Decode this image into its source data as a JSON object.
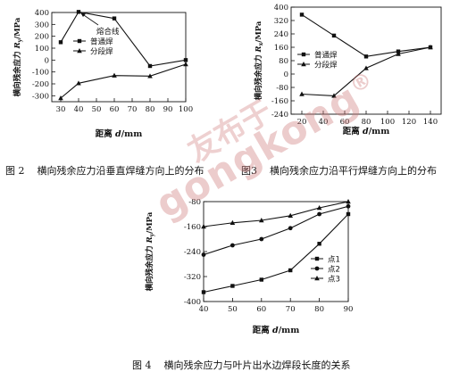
{
  "chart_data": [
    {
      "type": "line",
      "id": "fig2",
      "title": "",
      "xlabel": "距离 d/mm",
      "ylabel": "横向残余应力 R_y/MPa",
      "xlim": [
        25,
        100
      ],
      "ylim": [
        -350,
        400
      ],
      "xticks": [
        30,
        40,
        50,
        60,
        70,
        80,
        90,
        100
      ],
      "yticks": [
        -300,
        -200,
        -100,
        0,
        100,
        200,
        300,
        400
      ],
      "series": [
        {
          "name": "普通焊",
          "marker": "square",
          "x": [
            30,
            40,
            60,
            80,
            100
          ],
          "values": [
            150,
            405,
            350,
            -50,
            0
          ]
        },
        {
          "name": "分段焊",
          "marker": "triangle",
          "x": [
            30,
            40,
            60,
            80,
            100
          ],
          "values": [
            -320,
            -195,
            -130,
            -135,
            -35
          ]
        }
      ],
      "legend_position": "top-right",
      "annotation": {
        "text": "熔合线",
        "x": 40,
        "y": 400
      }
    },
    {
      "type": "line",
      "id": "fig3",
      "title": "",
      "xlabel": "距离 d/mm",
      "ylabel": "横向残余应力 R_x/MPa",
      "xlim": [
        10,
        150
      ],
      "ylim": [
        -240,
        400
      ],
      "xticks": [
        20,
        40,
        60,
        80,
        100,
        120,
        140
      ],
      "yticks": [
        -240,
        -160,
        -80,
        0,
        80,
        160,
        240,
        320,
        400
      ],
      "series": [
        {
          "name": "普通焊",
          "marker": "square",
          "x": [
            20,
            50,
            80,
            110,
            140
          ],
          "values": [
            355,
            230,
            105,
            135,
            160
          ]
        },
        {
          "name": "分段焊",
          "marker": "triangle",
          "x": [
            20,
            50,
            80,
            110,
            140
          ],
          "values": [
            -120,
            -130,
            35,
            120,
            160
          ]
        }
      ],
      "legend_position": "middle-left"
    },
    {
      "type": "line",
      "id": "fig4",
      "title": "",
      "xlabel": "距离 d/mm",
      "ylabel": "横向残余应力 R_y/MPa",
      "xlim": [
        40,
        90
      ],
      "ylim": [
        -400,
        -80
      ],
      "xticks": [
        40,
        50,
        60,
        70,
        80,
        90
      ],
      "yticks": [
        -400,
        -320,
        -240,
        -160,
        -80
      ],
      "series": [
        {
          "name": "点1",
          "marker": "square",
          "x": [
            40,
            50,
            60,
            70,
            80,
            90
          ],
          "values": [
            -370,
            -350,
            -330,
            -300,
            -215,
            -120
          ]
        },
        {
          "name": "点2",
          "marker": "circle",
          "x": [
            40,
            50,
            60,
            70,
            80,
            90
          ],
          "values": [
            -250,
            -220,
            -200,
            -165,
            -120,
            -95
          ]
        },
        {
          "name": "点3",
          "marker": "triangle",
          "x": [
            40,
            50,
            60,
            70,
            80,
            90
          ],
          "values": [
            -160,
            -148,
            -140,
            -125,
            -100,
            -80
          ]
        }
      ],
      "legend_position": "middle-right"
    }
  ],
  "captions": {
    "fig2": {
      "num": "图 2",
      "text": "横向残余应力沿垂直焊缝方向上的分布"
    },
    "fig3": {
      "num": "图3",
      "text": "横向残余应力沿平行焊缝方向上的分布"
    },
    "fig4": {
      "num": "图 4",
      "text": "横向残余应力与叶片出水边焊段长度的关系"
    }
  },
  "watermark": {
    "text": "gongkong",
    "chinese": "友布于",
    "registered": "®"
  }
}
